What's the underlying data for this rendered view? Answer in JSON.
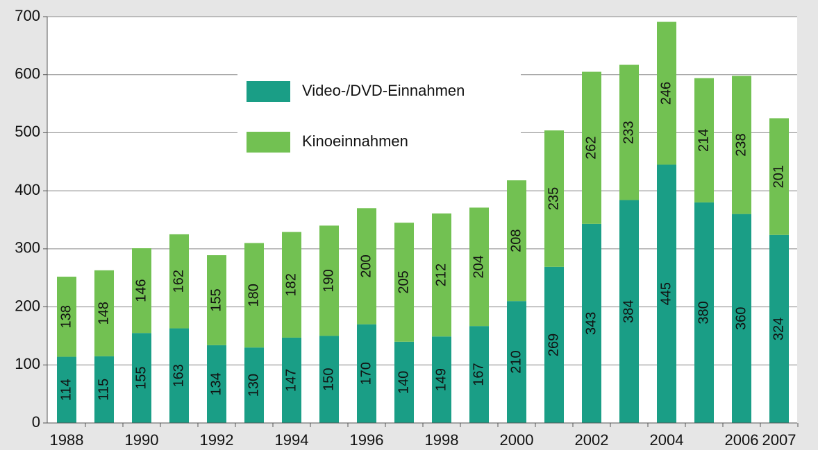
{
  "chart_data": {
    "type": "stacked_bar",
    "categories": [
      "1988",
      null,
      "1990",
      null,
      "1992",
      null,
      "1994",
      null,
      "1996",
      null,
      "1998",
      null,
      "2000",
      null,
      "2002",
      null,
      "2004",
      null,
      "2006",
      "2007"
    ],
    "series": [
      {
        "name": "Video-/DVD-Einnahmen",
        "color": "#1a9e86",
        "values": [
          114,
          115,
          155,
          163,
          134,
          130,
          147,
          150,
          170,
          140,
          149,
          167,
          210,
          269,
          343,
          384,
          445,
          380,
          360,
          324
        ]
      },
      {
        "name": "Kinoeinnahmen",
        "color": "#72c152",
        "values": [
          138,
          148,
          146,
          162,
          155,
          180,
          182,
          190,
          200,
          205,
          212,
          204,
          208,
          235,
          262,
          233,
          246,
          214,
          238,
          201
        ]
      }
    ],
    "ylim": [
      0,
      700
    ],
    "yticks": [
      0,
      100,
      200,
      300,
      400,
      500,
      600,
      700
    ],
    "grid": true
  }
}
